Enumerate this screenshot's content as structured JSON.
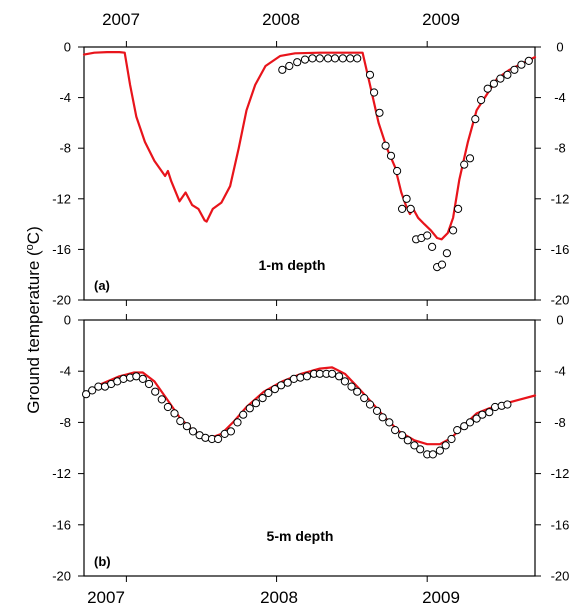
{
  "ylabel": {
    "text": "Ground temperature (",
    "sup": "o",
    "unit": "C)"
  },
  "years_top": [
    "2007",
    "2008",
    "2009"
  ],
  "years_bottom": [
    "2007",
    "2008",
    "2009"
  ],
  "colors": {
    "model": "#e8141b",
    "observed": "#000000",
    "axis": "#000000"
  },
  "chart_data": [
    {
      "type": "line",
      "panel_label": "(a)",
      "depth_label": "1-m depth",
      "x_axis": {
        "type": "time",
        "range": [
          "2006-09-20",
          "2009-09-20"
        ],
        "year_ticks": [
          "2007-01-01",
          "2008-01-01",
          "2009-01-01"
        ]
      },
      "ylim": [
        -20,
        0
      ],
      "yticks": [
        0,
        -4,
        -8,
        -12,
        -16,
        -20
      ],
      "series": [
        {
          "role": "model",
          "style": "red line",
          "points": [
            [
              "2006-09-20",
              -0.6
            ],
            [
              "2006-10-15",
              -0.45
            ],
            [
              "2006-11-15",
              -0.4
            ],
            [
              "2006-12-15",
              -0.4
            ],
            [
              "2006-12-28",
              -0.45
            ],
            [
              "2007-01-10",
              -3.0
            ],
            [
              "2007-01-25",
              -5.5
            ],
            [
              "2007-02-15",
              -7.5
            ],
            [
              "2007-03-10",
              -9.0
            ],
            [
              "2007-04-05",
              -10.2
            ],
            [
              "2007-04-12",
              -9.8
            ],
            [
              "2007-04-20",
              -10.6
            ],
            [
              "2007-05-10",
              -12.2
            ],
            [
              "2007-05-25",
              -11.5
            ],
            [
              "2007-06-10",
              -12.5
            ],
            [
              "2007-06-25",
              -12.8
            ],
            [
              "2007-07-10",
              -13.7
            ],
            [
              "2007-07-15",
              -13.8
            ],
            [
              "2007-07-30",
              -12.8
            ],
            [
              "2007-08-20",
              -12.3
            ],
            [
              "2007-09-10",
              -11.0
            ],
            [
              "2007-10-01",
              -8.0
            ],
            [
              "2007-10-20",
              -5.0
            ],
            [
              "2007-11-10",
              -3.0
            ],
            [
              "2007-12-05",
              -1.5
            ],
            [
              "2008-01-10",
              -0.7
            ],
            [
              "2008-02-15",
              -0.5
            ],
            [
              "2008-04-15",
              -0.45
            ],
            [
              "2008-06-15",
              -0.45
            ],
            [
              "2008-07-28",
              -0.45
            ],
            [
              "2008-08-15",
              -3.0
            ],
            [
              "2008-09-05",
              -6.0
            ],
            [
              "2008-09-25",
              -8.0
            ],
            [
              "2008-10-15",
              -9.5
            ],
            [
              "2008-10-30",
              -11.5
            ],
            [
              "2008-11-10",
              -12.5
            ],
            [
              "2008-11-20",
              -13.2
            ],
            [
              "2008-11-28",
              -12.8
            ],
            [
              "2008-12-10",
              -13.5
            ],
            [
              "2008-12-25",
              -14.0
            ],
            [
              "2009-01-10",
              -14.5
            ],
            [
              "2009-01-25",
              -15.1
            ],
            [
              "2009-02-05",
              -15.2
            ],
            [
              "2009-02-20",
              -14.7
            ],
            [
              "2009-03-05",
              -13.5
            ],
            [
              "2009-03-20",
              -10.5
            ],
            [
              "2009-04-10",
              -7.5
            ],
            [
              "2009-05-01",
              -5.0
            ],
            [
              "2009-05-25",
              -3.8
            ],
            [
              "2009-06-20",
              -2.5
            ],
            [
              "2009-07-20",
              -1.8
            ],
            [
              "2009-08-20",
              -1.3
            ],
            [
              "2009-09-20",
              -0.8
            ]
          ]
        },
        {
          "role": "observed",
          "style": "open circles",
          "points": [
            [
              "2008-01-15",
              -1.8
            ],
            [
              "2008-02-01",
              -1.5
            ],
            [
              "2008-02-20",
              -1.2
            ],
            [
              "2008-03-10",
              -1.0
            ],
            [
              "2008-03-28",
              -0.9
            ],
            [
              "2008-04-15",
              -0.9
            ],
            [
              "2008-05-05",
              -0.9
            ],
            [
              "2008-05-22",
              -0.9
            ],
            [
              "2008-06-10",
              -0.9
            ],
            [
              "2008-06-28",
              -0.9
            ],
            [
              "2008-07-15",
              -0.9
            ],
            [
              "2008-08-15",
              -2.2
            ],
            [
              "2008-08-25",
              -3.6
            ],
            [
              "2008-09-07",
              -5.2
            ],
            [
              "2008-09-22",
              -7.8
            ],
            [
              "2008-10-05",
              -8.6
            ],
            [
              "2008-10-20",
              -9.8
            ],
            [
              "2008-11-01",
              -12.8
            ],
            [
              "2008-11-12",
              -12.0
            ],
            [
              "2008-11-22",
              -12.8
            ],
            [
              "2008-12-05",
              -15.2
            ],
            [
              "2008-12-18",
              -15.1
            ],
            [
              "2009-01-01",
              -14.9
            ],
            [
              "2009-01-13",
              -15.8
            ],
            [
              "2009-01-25",
              -17.4
            ],
            [
              "2009-02-06",
              -17.2
            ],
            [
              "2009-02-18",
              -16.3
            ],
            [
              "2009-03-05",
              -14.5
            ],
            [
              "2009-03-17",
              -12.8
            ],
            [
              "2009-04-01",
              -9.3
            ],
            [
              "2009-04-15",
              -8.8
            ],
            [
              "2009-04-28",
              -5.7
            ],
            [
              "2009-05-12",
              -4.2
            ],
            [
              "2009-05-28",
              -3.3
            ],
            [
              "2009-06-12",
              -2.9
            ],
            [
              "2009-06-28",
              -2.5
            ],
            [
              "2009-07-15",
              -2.2
            ],
            [
              "2009-08-01",
              -1.8
            ],
            [
              "2009-08-18",
              -1.4
            ],
            [
              "2009-09-05",
              -1.1
            ]
          ]
        }
      ]
    },
    {
      "type": "line",
      "panel_label": "(b)",
      "depth_label": "5-m depth",
      "x_axis": {
        "type": "time",
        "range": [
          "2006-09-20",
          "2009-09-20"
        ],
        "year_ticks": [
          "2007-01-01",
          "2008-01-01",
          "2009-01-01"
        ]
      },
      "ylim": [
        -20,
        0
      ],
      "yticks": [
        0,
        -4,
        -8,
        -12,
        -16,
        -20
      ],
      "series": [
        {
          "role": "model",
          "style": "red line",
          "points": [
            [
              "2006-09-20",
              -5.9
            ],
            [
              "2006-11-01",
              -5.0
            ],
            [
              "2006-12-15",
              -4.4
            ],
            [
              "2007-01-20",
              -4.1
            ],
            [
              "2007-02-10",
              -4.1
            ],
            [
              "2007-03-10",
              -4.8
            ],
            [
              "2007-04-10",
              -6.2
            ],
            [
              "2007-05-10",
              -7.6
            ],
            [
              "2007-06-10",
              -8.6
            ],
            [
              "2007-07-10",
              -9.1
            ],
            [
              "2007-07-25",
              -9.2
            ],
            [
              "2007-08-20",
              -8.9
            ],
            [
              "2007-09-20",
              -7.9
            ],
            [
              "2007-10-20",
              -6.8
            ],
            [
              "2007-12-01",
              -5.6
            ],
            [
              "2008-01-15",
              -4.8
            ],
            [
              "2008-03-01",
              -4.2
            ],
            [
              "2008-04-15",
              -3.8
            ],
            [
              "2008-05-15",
              -3.7
            ],
            [
              "2008-06-15",
              -4.2
            ],
            [
              "2008-07-15",
              -5.2
            ],
            [
              "2008-08-15",
              -6.3
            ],
            [
              "2008-09-20",
              -7.6
            ],
            [
              "2008-10-25",
              -8.7
            ],
            [
              "2008-12-01",
              -9.4
            ],
            [
              "2009-01-01",
              -9.7
            ],
            [
              "2009-02-01",
              -9.7
            ],
            [
              "2009-03-01",
              -9.2
            ],
            [
              "2009-04-01",
              -8.2
            ],
            [
              "2009-05-01",
              -7.3
            ],
            [
              "2009-06-01",
              -6.9
            ],
            [
              "2009-07-01",
              -6.6
            ],
            [
              "2009-08-15",
              -6.2
            ],
            [
              "2009-09-20",
              -5.9
            ]
          ]
        },
        {
          "role": "observed",
          "style": "open circles",
          "points": [
            [
              "2006-09-25",
              -5.8
            ],
            [
              "2006-10-10",
              -5.5
            ],
            [
              "2006-10-25",
              -5.2
            ],
            [
              "2006-11-10",
              -5.2
            ],
            [
              "2006-11-25",
              -5.0
            ],
            [
              "2006-12-10",
              -4.8
            ],
            [
              "2006-12-25",
              -4.6
            ],
            [
              "2007-01-10",
              -4.5
            ],
            [
              "2007-01-25",
              -4.4
            ],
            [
              "2007-02-10",
              -4.6
            ],
            [
              "2007-02-25",
              -5.0
            ],
            [
              "2007-03-12",
              -5.6
            ],
            [
              "2007-03-28",
              -6.2
            ],
            [
              "2007-04-12",
              -6.8
            ],
            [
              "2007-04-28",
              -7.3
            ],
            [
              "2007-05-12",
              -7.9
            ],
            [
              "2007-05-28",
              -8.3
            ],
            [
              "2007-06-12",
              -8.7
            ],
            [
              "2007-06-28",
              -9.0
            ],
            [
              "2007-07-12",
              -9.2
            ],
            [
              "2007-07-28",
              -9.3
            ],
            [
              "2007-08-12",
              -9.3
            ],
            [
              "2007-08-28",
              -8.9
            ],
            [
              "2007-09-12",
              -8.7
            ],
            [
              "2007-09-28",
              -8.0
            ],
            [
              "2007-10-12",
              -7.4
            ],
            [
              "2007-10-28",
              -6.9
            ],
            [
              "2007-11-12",
              -6.5
            ],
            [
              "2007-11-28",
              -6.1
            ],
            [
              "2007-12-12",
              -5.7
            ],
            [
              "2007-12-28",
              -5.4
            ],
            [
              "2008-01-12",
              -5.1
            ],
            [
              "2008-01-28",
              -4.9
            ],
            [
              "2008-02-12",
              -4.6
            ],
            [
              "2008-02-28",
              -4.5
            ],
            [
              "2008-03-15",
              -4.4
            ],
            [
              "2008-04-01",
              -4.2
            ],
            [
              "2008-04-15",
              -4.2
            ],
            [
              "2008-05-01",
              -4.2
            ],
            [
              "2008-05-15",
              -4.2
            ],
            [
              "2008-06-01",
              -4.4
            ],
            [
              "2008-06-15",
              -4.8
            ],
            [
              "2008-07-01",
              -5.2
            ],
            [
              "2008-07-15",
              -5.6
            ],
            [
              "2008-08-01",
              -6.1
            ],
            [
              "2008-08-15",
              -6.6
            ],
            [
              "2008-09-01",
              -7.1
            ],
            [
              "2008-09-15",
              -7.6
            ],
            [
              "2008-10-01",
              -8.0
            ],
            [
              "2008-10-15",
              -8.6
            ],
            [
              "2008-11-01",
              -9.0
            ],
            [
              "2008-11-15",
              -9.4
            ],
            [
              "2008-12-01",
              -9.8
            ],
            [
              "2008-12-15",
              -10.1
            ],
            [
              "2009-01-01",
              -10.5
            ],
            [
              "2009-01-15",
              -10.5
            ],
            [
              "2009-02-01",
              -10.2
            ],
            [
              "2009-02-15",
              -9.8
            ],
            [
              "2009-03-01",
              -9.3
            ],
            [
              "2009-03-15",
              -8.6
            ],
            [
              "2009-04-01",
              -8.3
            ],
            [
              "2009-04-15",
              -8.0
            ],
            [
              "2009-05-01",
              -7.7
            ],
            [
              "2009-05-15",
              -7.4
            ],
            [
              "2009-06-01",
              -7.2
            ],
            [
              "2009-06-15",
              -6.8
            ],
            [
              "2009-07-01",
              -6.7
            ],
            [
              "2009-07-15",
              -6.6
            ]
          ]
        }
      ]
    }
  ]
}
